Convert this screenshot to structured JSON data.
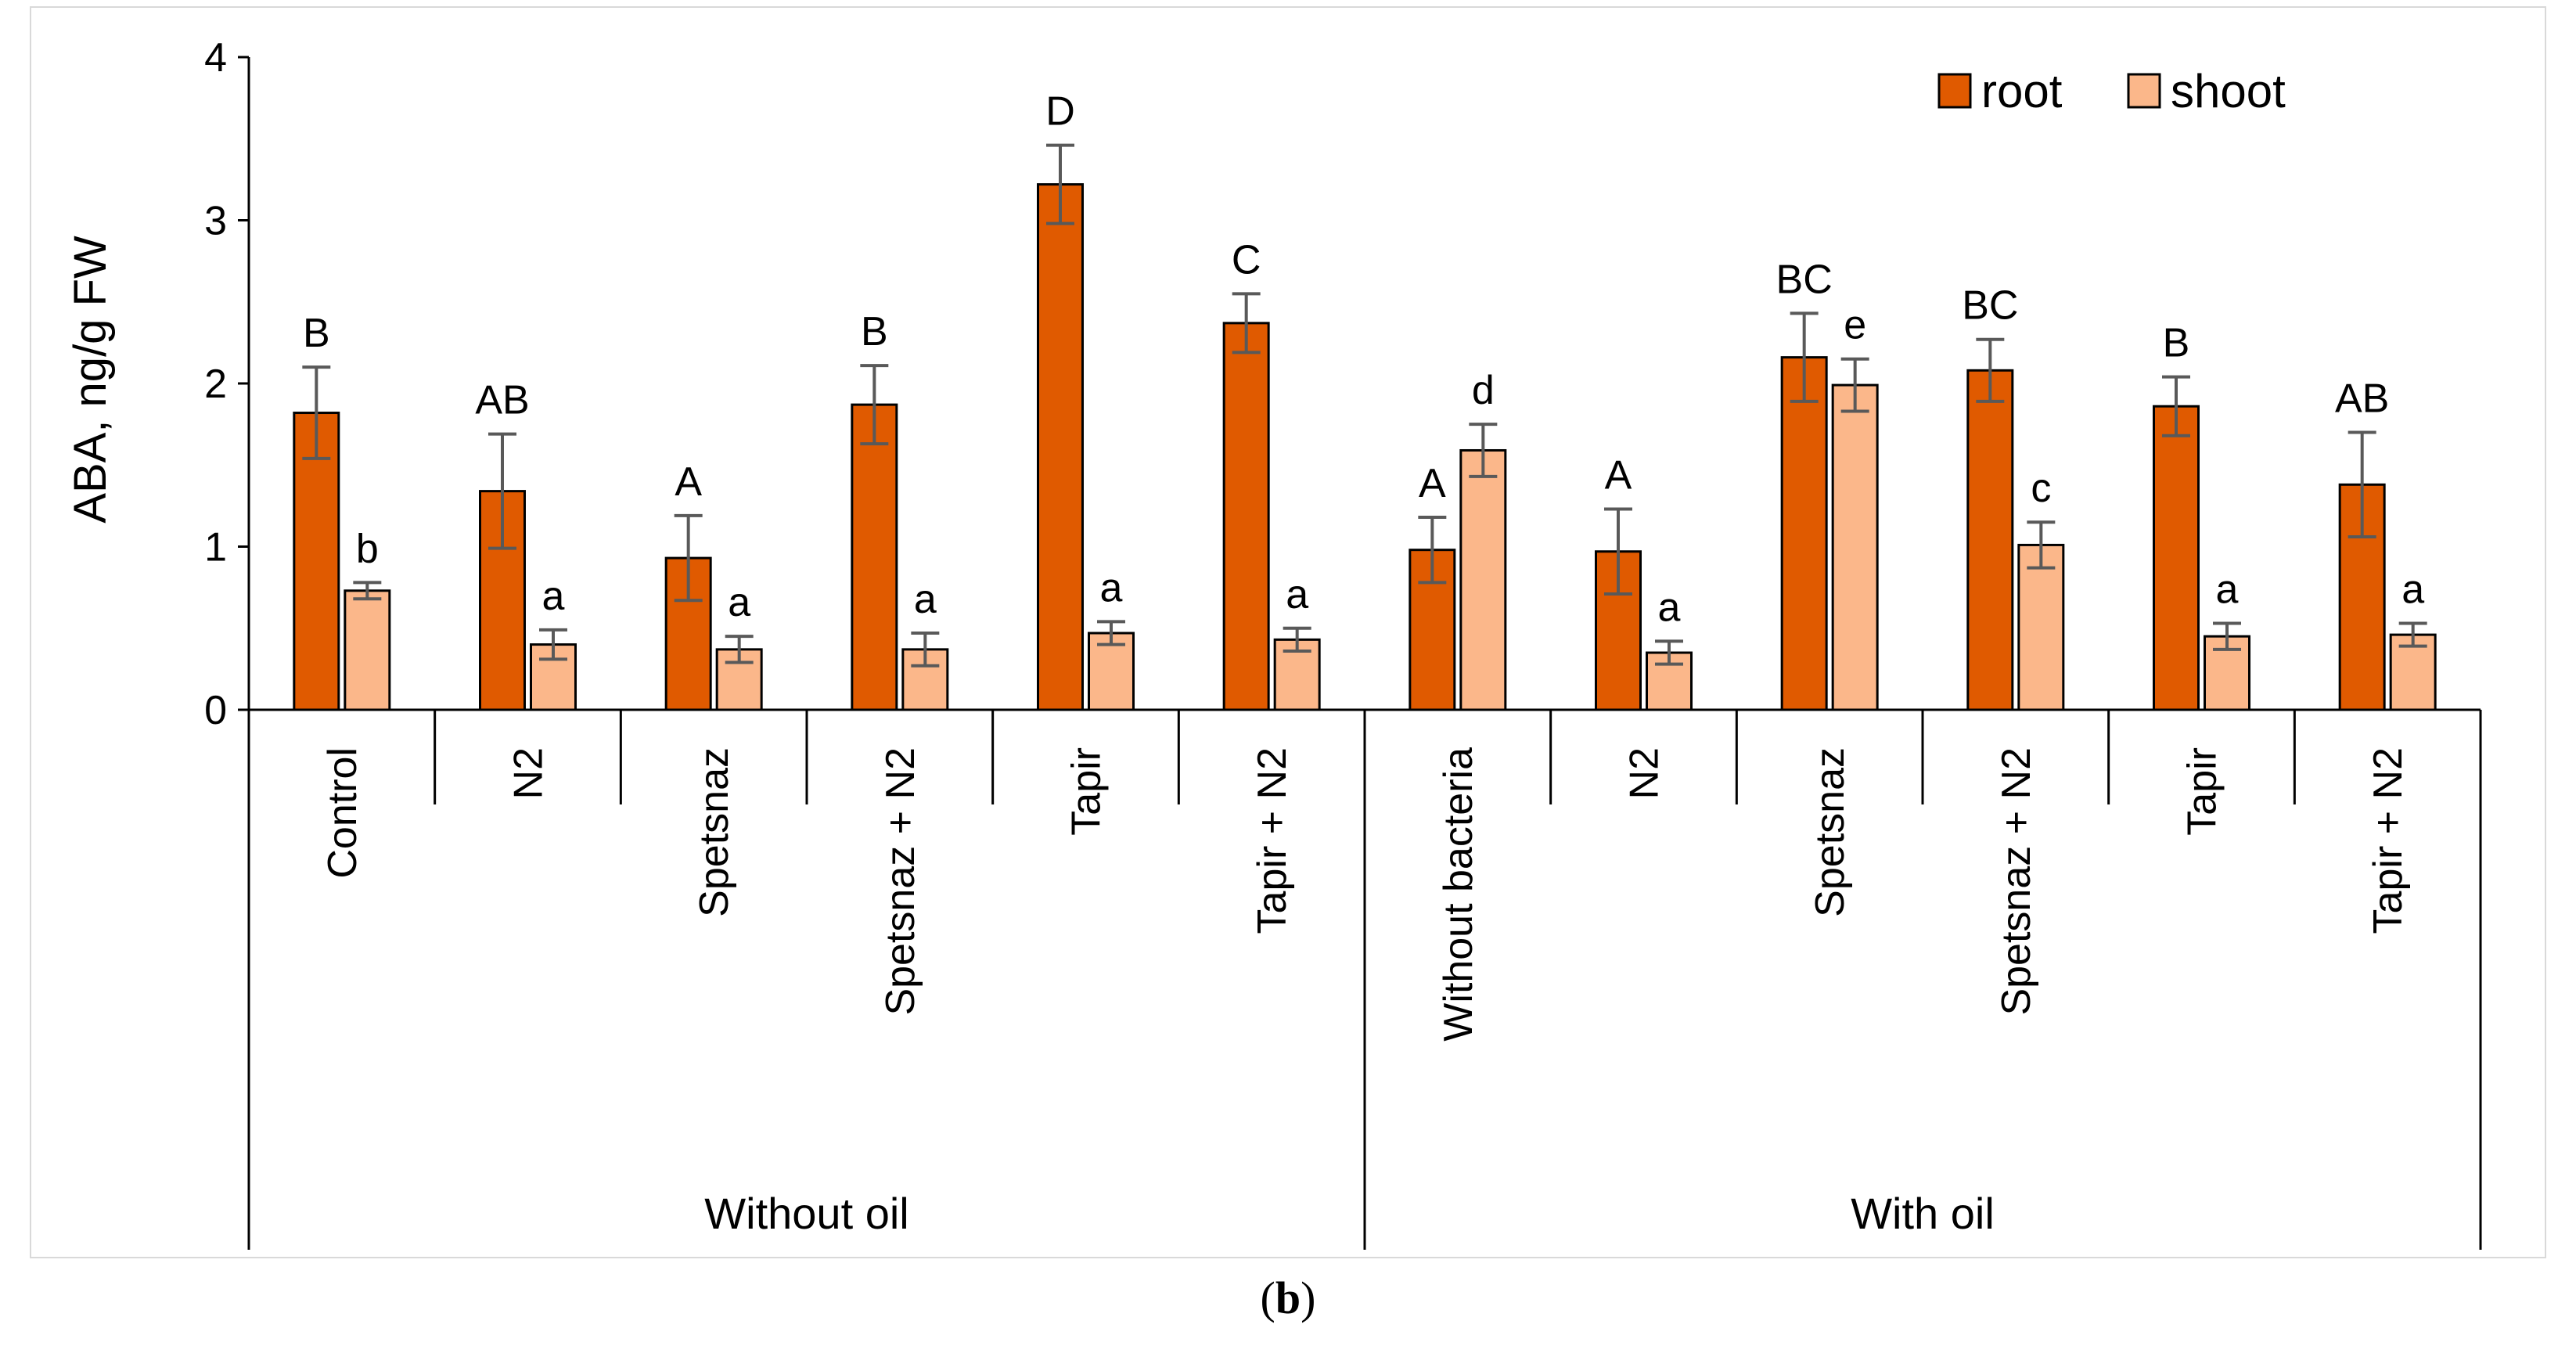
{
  "chart_data": {
    "type": "bar",
    "ylabel": "ABA, ng/g FW",
    "ylim": [
      0,
      4
    ],
    "yticks": [
      0,
      1,
      2,
      3,
      4
    ],
    "groups": [
      {
        "label": "Without oil",
        "categories": [
          "Control",
          "N2",
          "Spetsnaz",
          "Spetsnaz + N2",
          "Tapir",
          "Tapir + N2"
        ]
      },
      {
        "label": "With oil",
        "categories": [
          "Without bacteria",
          "N2",
          "Spetsnaz",
          "Spetsnaz + N2",
          "Tapir",
          "Tapir + N2"
        ]
      }
    ],
    "categories": [
      "Control",
      "N2",
      "Spetsnaz",
      "Spetsnaz + N2",
      "Tapir",
      "Tapir + N2",
      "Without bacteria",
      "N2",
      "Spetsnaz",
      "Spetsnaz + N2",
      "Tapir",
      "Tapir + N2"
    ],
    "series": [
      {
        "name": "root",
        "color": "#e05a00",
        "values": [
          1.82,
          1.34,
          0.93,
          1.87,
          3.22,
          2.37,
          0.98,
          0.97,
          2.16,
          2.08,
          1.86,
          1.38
        ],
        "errors": [
          0.28,
          0.35,
          0.26,
          0.24,
          0.24,
          0.18,
          0.2,
          0.26,
          0.27,
          0.19,
          0.18,
          0.32
        ],
        "letters": [
          "B",
          "AB",
          "A",
          "B",
          "D",
          "C",
          "A",
          "A",
          "BC",
          "BC",
          "B",
          "AB"
        ]
      },
      {
        "name": "shoot",
        "color": "#fbb78a",
        "values": [
          0.73,
          0.4,
          0.37,
          0.37,
          0.47,
          0.43,
          1.59,
          0.35,
          1.99,
          1.01,
          0.45,
          0.46
        ],
        "errors": [
          0.05,
          0.09,
          0.08,
          0.1,
          0.07,
          0.07,
          0.16,
          0.07,
          0.16,
          0.14,
          0.08,
          0.07
        ],
        "letters": [
          "b",
          "a",
          "a",
          "a",
          "a",
          "a",
          "d",
          "a",
          "e",
          "c",
          "a",
          "a"
        ]
      }
    ],
    "legend_position": "top-right"
  },
  "caption": {
    "open": "(",
    "letter": "b",
    "close": ")"
  }
}
